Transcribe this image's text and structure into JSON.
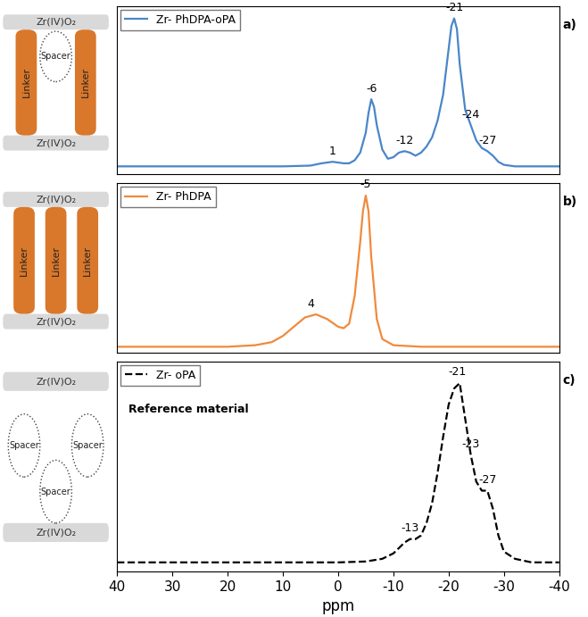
{
  "chart_data": [
    {
      "type": "line",
      "panel_label": "a)",
      "tick_labels": false,
      "xlim": [
        40,
        -40
      ],
      "xticks": [
        40,
        30,
        20,
        10,
        0,
        -10,
        -20,
        -30,
        -40
      ],
      "ylim": [
        -0.02,
        1.08
      ],
      "legend": "upper left",
      "series": [
        {
          "name": "Zr- PhDPA-oPA",
          "color": "#4a86c8",
          "line_style": "solid",
          "x": [
            40,
            30,
            20,
            10,
            5,
            3,
            1,
            -1,
            -2,
            -3,
            -4,
            -5,
            -5.5,
            -6,
            -6.5,
            -7,
            -8,
            -9,
            -10,
            -11,
            -12,
            -13,
            -14,
            -15,
            -16,
            -17,
            -18,
            -19,
            -20,
            -20.5,
            -21,
            -21.5,
            -22,
            -23,
            -24,
            -25,
            -26,
            -27,
            -28,
            -29,
            -30,
            -32,
            -35,
            -40
          ],
          "values": [
            0.03,
            0.03,
            0.03,
            0.03,
            0.035,
            0.05,
            0.06,
            0.05,
            0.05,
            0.07,
            0.12,
            0.25,
            0.38,
            0.47,
            0.42,
            0.3,
            0.14,
            0.08,
            0.09,
            0.12,
            0.13,
            0.12,
            0.1,
            0.12,
            0.16,
            0.22,
            0.33,
            0.5,
            0.8,
            0.95,
            1.0,
            0.93,
            0.7,
            0.4,
            0.3,
            0.2,
            0.15,
            0.13,
            0.1,
            0.06,
            0.04,
            0.03,
            0.03,
            0.03
          ]
        }
      ],
      "annotations": [
        {
          "text": "1",
          "x": 1,
          "y": 0.06
        },
        {
          "text": "-6",
          "x": -6,
          "y": 0.47
        },
        {
          "text": "-12",
          "x": -12,
          "y": 0.13
        },
        {
          "text": "-21",
          "x": -21,
          "y": 1.0
        },
        {
          "text": "-24",
          "x": -24,
          "y": 0.3
        },
        {
          "text": "-27",
          "x": -27,
          "y": 0.13
        }
      ]
    },
    {
      "type": "line",
      "panel_label": "b)",
      "tick_labels": false,
      "xlim": [
        40,
        -40
      ],
      "xticks": [
        40,
        30,
        20,
        10,
        0,
        -10,
        -20,
        -30,
        -40
      ],
      "ylim": [
        -0.02,
        1.08
      ],
      "legend": "upper left",
      "series": [
        {
          "name": "Zr- PhDPA",
          "color": "#f08a3c",
          "line_style": "solid",
          "x": [
            40,
            30,
            20,
            15,
            12,
            10,
            8,
            6,
            4,
            2,
            0,
            -1,
            -2,
            -3,
            -4,
            -4.5,
            -5,
            -5.5,
            -6,
            -7,
            -8,
            -10,
            -15,
            -20,
            -30,
            -40
          ],
          "values": [
            0.02,
            0.02,
            0.02,
            0.03,
            0.05,
            0.09,
            0.15,
            0.21,
            0.23,
            0.2,
            0.15,
            0.14,
            0.17,
            0.35,
            0.7,
            0.9,
            1.0,
            0.9,
            0.6,
            0.2,
            0.07,
            0.03,
            0.02,
            0.02,
            0.02,
            0.02
          ]
        }
      ],
      "annotations": [
        {
          "text": "4",
          "x": 5,
          "y": 0.23
        },
        {
          "text": "-5",
          "x": -5,
          "y": 1.0
        }
      ]
    },
    {
      "type": "line",
      "panel_label": "c)",
      "tick_labels": "x",
      "x_label": "ppm",
      "xlim": [
        40,
        -40
      ],
      "xticks": [
        40,
        30,
        20,
        10,
        0,
        -10,
        -20,
        -30,
        -40
      ],
      "ylim": [
        -0.05,
        1.12
      ],
      "legend": "upper left",
      "subtitle": "Reference material",
      "series": [
        {
          "name": "Zr- oPA",
          "color": "#000000",
          "line_style": "dashed",
          "x": [
            40,
            20,
            0,
            -5,
            -8,
            -10,
            -11,
            -12,
            -13,
            -14,
            -15,
            -16,
            -17,
            -18,
            -19,
            -20,
            -21,
            -22,
            -23,
            -24,
            -25,
            -26,
            -27,
            -28,
            -29,
            -30,
            -32,
            -35,
            -40
          ],
          "values": [
            0,
            0,
            0,
            0.005,
            0.02,
            0.05,
            0.08,
            0.11,
            0.13,
            0.13,
            0.15,
            0.22,
            0.33,
            0.5,
            0.7,
            0.88,
            0.97,
            1.0,
            0.8,
            0.6,
            0.45,
            0.4,
            0.4,
            0.3,
            0.15,
            0.06,
            0.02,
            0,
            0
          ]
        }
      ],
      "annotations": [
        {
          "text": "-13",
          "x": -13,
          "y": 0.13
        },
        {
          "text": "-21",
          "x": -21.5,
          "y": 1.0
        },
        {
          "text": "-23",
          "x": -24,
          "y": 0.6
        },
        {
          "text": "-27",
          "x": -27,
          "y": 0.4
        }
      ]
    }
  ],
  "schemes": [
    {
      "layers": [
        "Zr(IV)O₂",
        "Zr(IV)O₂"
      ],
      "linkers": [
        "Linker",
        "Linker"
      ],
      "spacers": [
        "Spacer"
      ]
    },
    {
      "layers": [
        "Zr(IV)O₂",
        "Zr(IV)O₂"
      ],
      "linkers": [
        "Linker",
        "Linker",
        "Linker"
      ],
      "spacers": []
    },
    {
      "layers": [
        "Zr(IV)O₂",
        "Zr(IV)O₂"
      ],
      "linkers": [],
      "spacers": [
        "Spacer",
        "Spacer",
        "Spacer"
      ]
    }
  ]
}
